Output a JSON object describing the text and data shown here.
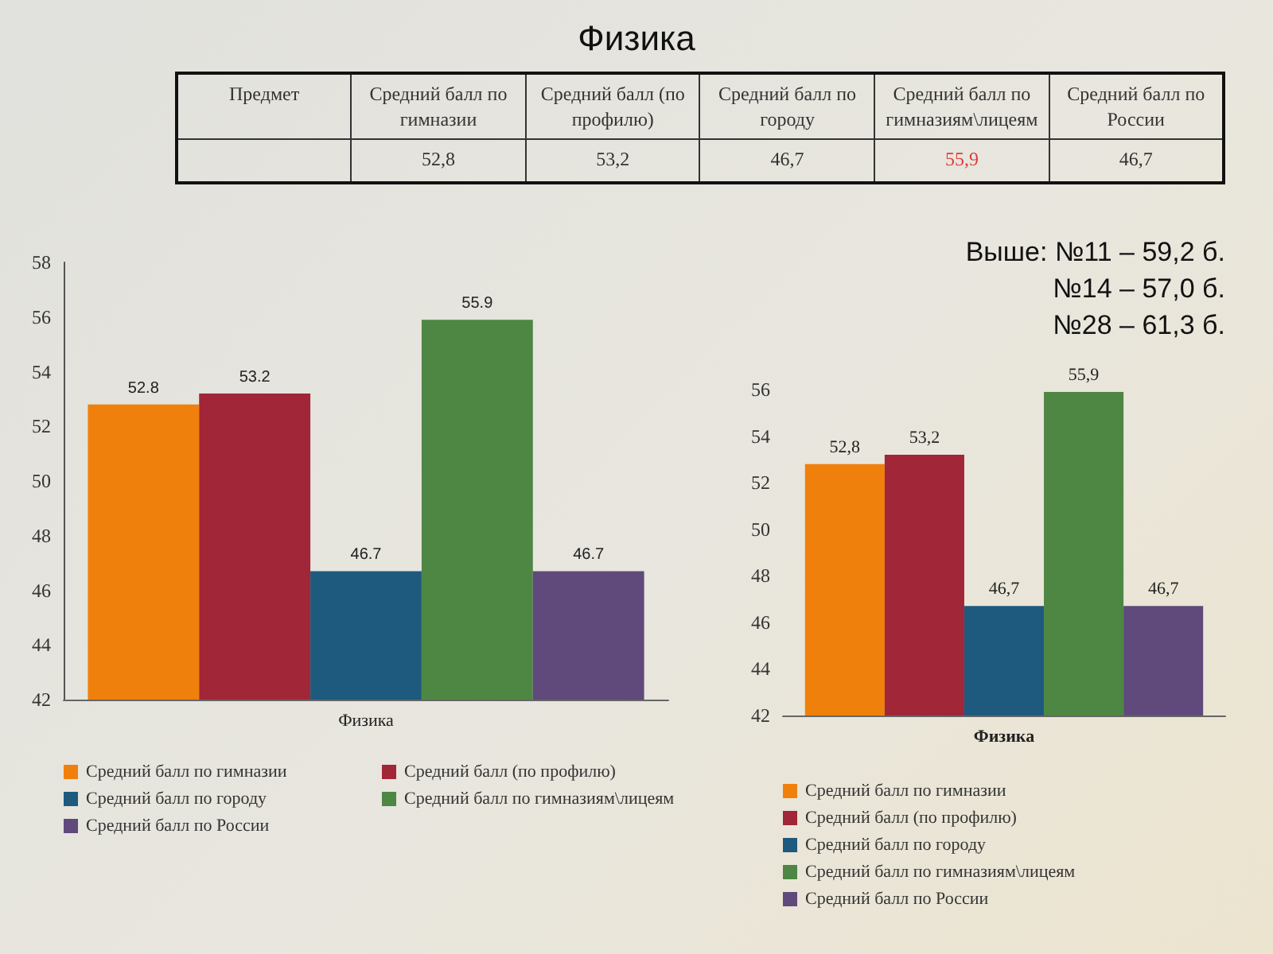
{
  "chart_data": [
    {
      "type": "bar",
      "title": "Физика",
      "categories": [
        "Физика"
      ],
      "series": [
        {
          "name": "Средний балл по гимназии",
          "color": "#f0800c",
          "values": [
            52.8
          ]
        },
        {
          "name": "Средний балл (по профилю)",
          "color": "#a12637",
          "values": [
            53.2
          ]
        },
        {
          "name": "Средний балл по городу",
          "color": "#1e5a7e",
          "values": [
            46.7
          ]
        },
        {
          "name": "Средний балл по гимназиям\\лицеям",
          "color": "#4e8644",
          "values": [
            55.9
          ]
        },
        {
          "name": "Средний балл по России",
          "color": "#5f4a7b",
          "values": [
            46.7
          ]
        }
      ],
      "ylim": [
        42,
        58
      ],
      "yticks": [
        42,
        44,
        46,
        48,
        50,
        52,
        54,
        56,
        58
      ],
      "data_labels": true,
      "legend": "bottom",
      "annotations": [
        "Выше: №11 – 59,2 б.",
        "№14 – 57,0 б.",
        "№28 – 61,3 б."
      ]
    },
    {
      "type": "other",
      "categories": [
        "Предмет",
        "Средний балл по гимназии",
        "Средний балл (по профилю)",
        "Средний балл по городу",
        "Средний балл по гимназиям\\лицеям",
        "Средний балл по России"
      ],
      "value_labels": [
        null,
        "52,8",
        "53,2",
        "46,7",
        "55,9",
        "46,7"
      ],
      "colors": [
        "#333333",
        "#333333",
        "#333333",
        "#333333",
        "#e0393a",
        "#333333"
      ]
    },
    {
      "type": "bar",
      "categories": [
        "Физика"
      ],
      "series": [
        {
          "name": "Средний балл по гимназии",
          "color": "#f0800c",
          "values": [
            52.8
          ],
          "value_labels": [
            "52,8"
          ]
        },
        {
          "name": "Средний балл (по профилю)",
          "color": "#a12637",
          "values": [
            53.2
          ],
          "value_labels": [
            "53,2"
          ]
        },
        {
          "name": "Средний балл по городу",
          "color": "#1e5a7e",
          "values": [
            46.7
          ],
          "value_labels": [
            "46,7"
          ]
        },
        {
          "name": "Средний балл по гимназиям\\лицеям",
          "color": "#4e8644",
          "values": [
            55.9
          ],
          "value_labels": [
            "55,9"
          ]
        },
        {
          "name": "Средний балл по России",
          "color": "#5f4a7b",
          "values": [
            46.7
          ],
          "value_labels": [
            "46,7"
          ]
        }
      ],
      "ylim": [
        42,
        56
      ],
      "yticks": [
        42,
        44,
        46,
        48,
        50,
        52,
        54,
        56
      ],
      "legend": "bottom"
    }
  ]
}
